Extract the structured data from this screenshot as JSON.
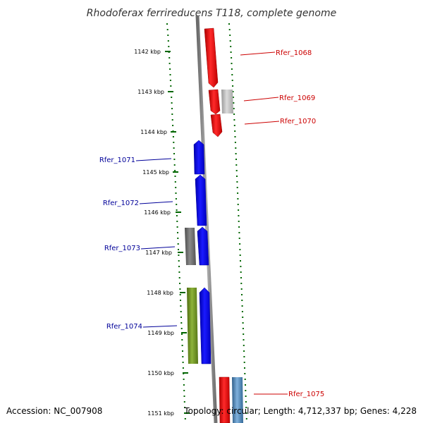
{
  "title": "Rhodoferax ferrireducens T118, complete genome",
  "footer": {
    "accession": "Accession: NC_007908",
    "summary": "Topology: circular; Length: 4,712,337 bp; Genes: 4,228"
  },
  "ticks": [
    "1142 kbp",
    "1143 kbp",
    "1144 kbp",
    "1145 kbp",
    "1146 kbp",
    "1147 kbp",
    "1148 kbp",
    "1149 kbp",
    "1150 kbp",
    "1151 kbp"
  ],
  "genes": [
    {
      "name": "Rfer_1068",
      "strand": "+",
      "color": "#ff0000",
      "label_color": "#cc0000"
    },
    {
      "name": "Rfer_1069",
      "strand": "+",
      "color": "#ff0000",
      "label_color": "#cc0000"
    },
    {
      "name": "Rfer_1070",
      "strand": "+",
      "color": "#ff0000",
      "label_color": "#cc0000"
    },
    {
      "name": "Rfer_1071",
      "strand": "-",
      "color": "#0000ff",
      "label_color": "#000099"
    },
    {
      "name": "Rfer_1072",
      "strand": "-",
      "color": "#0000ff",
      "label_color": "#000099"
    },
    {
      "name": "Rfer_1073",
      "strand": "-",
      "color": "#0000ff",
      "label_color": "#000099"
    },
    {
      "name": "Rfer_1074",
      "strand": "-",
      "color": "#0000ff",
      "label_color": "#000099"
    },
    {
      "name": "Rfer_1075",
      "strand": "+",
      "color": "#ff0000",
      "label_color": "#cc0000"
    }
  ],
  "colors": {
    "backbone": "#888888",
    "tick_marks": "#006600",
    "forward_cds": "#ff0000",
    "reverse_cds": "#0000ff",
    "gray_feature": "#666666",
    "light_feature": "#bbbbbb",
    "green_feature": "#6b8e23",
    "steel_feature": "#4682b4"
  }
}
